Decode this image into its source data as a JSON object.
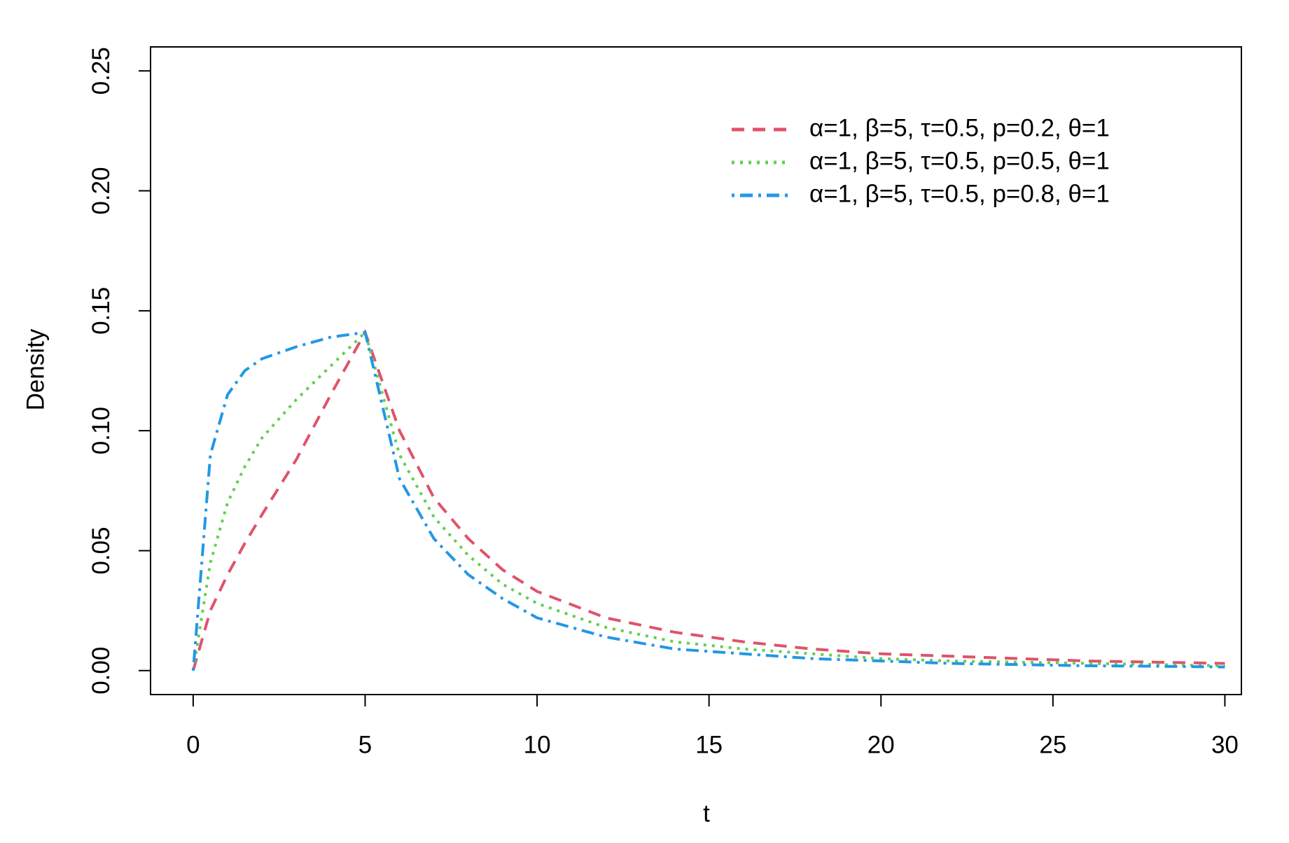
{
  "chart_data": {
    "type": "line",
    "x_label": "t",
    "y_label": "Density",
    "x": [
      0,
      0.5,
      1,
      1.5,
      2,
      3,
      4,
      5,
      6,
      7,
      8,
      9,
      10,
      12,
      14,
      16,
      18,
      20,
      22,
      24,
      26,
      28,
      30
    ],
    "series": [
      {
        "name": "α=1, β=5, τ=0.5, p=0.2, θ=1",
        "color": "#DF536B",
        "dash": "dashed",
        "values": [
          0,
          0.025,
          0.04,
          0.053,
          0.065,
          0.088,
          0.115,
          0.141,
          0.1,
          0.072,
          0.055,
          0.042,
          0.033,
          0.022,
          0.016,
          0.012,
          0.009,
          0.007,
          0.006,
          0.005,
          0.004,
          0.0035,
          0.003
        ]
      },
      {
        "name": "α=1, β=5, τ=0.5, p=0.5, θ=1",
        "color": "#61D04F",
        "dash": "dotted",
        "values": [
          0,
          0.045,
          0.07,
          0.085,
          0.097,
          0.113,
          0.127,
          0.141,
          0.09,
          0.064,
          0.048,
          0.036,
          0.028,
          0.018,
          0.012,
          0.009,
          0.007,
          0.005,
          0.004,
          0.0035,
          0.003,
          0.0025,
          0.002
        ]
      },
      {
        "name": "α=1, β=5, τ=0.5, p=0.8, θ=1",
        "color": "#2297E6",
        "dash": "dotdash",
        "values": [
          0,
          0.09,
          0.115,
          0.125,
          0.13,
          0.135,
          0.139,
          0.141,
          0.08,
          0.055,
          0.04,
          0.03,
          0.022,
          0.014,
          0.009,
          0.007,
          0.005,
          0.004,
          0.003,
          0.0025,
          0.002,
          0.0018,
          0.0015
        ]
      }
    ],
    "xlim": [
      -1.24,
      30.48
    ],
    "ylim": [
      -0.01,
      0.26
    ],
    "xticks": [
      0,
      5,
      10,
      15,
      20,
      25,
      30
    ],
    "yticks": [
      {
        "value": 0,
        "label": "0.00"
      },
      {
        "value": 0.05,
        "label": "0.05"
      },
      {
        "value": 0.1,
        "label": "0.10"
      },
      {
        "value": 0.15,
        "label": "0.15"
      },
      {
        "value": 0.2,
        "label": "0.20"
      },
      {
        "value": 0.25,
        "label": "0.25"
      }
    ],
    "legend": "top-right",
    "grid": false
  }
}
